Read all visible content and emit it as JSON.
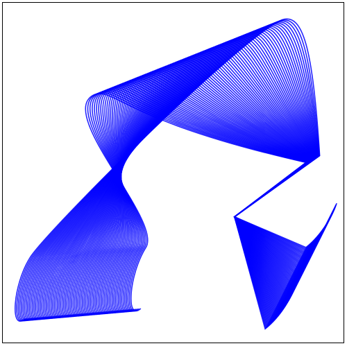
{
  "chart_data": {
    "type": "line",
    "title": "",
    "xlabel": "",
    "ylabel": "",
    "axes_visible": false,
    "frame": true,
    "grid": false,
    "legend": "none",
    "series_color": "#0000ff",
    "curve_count": 75,
    "description": "",
    "pivot": {
      "x": 0.68,
      "y": 0.37
    },
    "fan_vertices": [
      {
        "x": 0.77,
        "y": 0.04
      },
      {
        "x": 0.89,
        "y": 0.28
      }
    ],
    "outer_loop_tips": [
      {
        "x": 0.07,
        "y": 0.05
      },
      {
        "x": 0.82,
        "y": 0.95
      }
    ]
  }
}
